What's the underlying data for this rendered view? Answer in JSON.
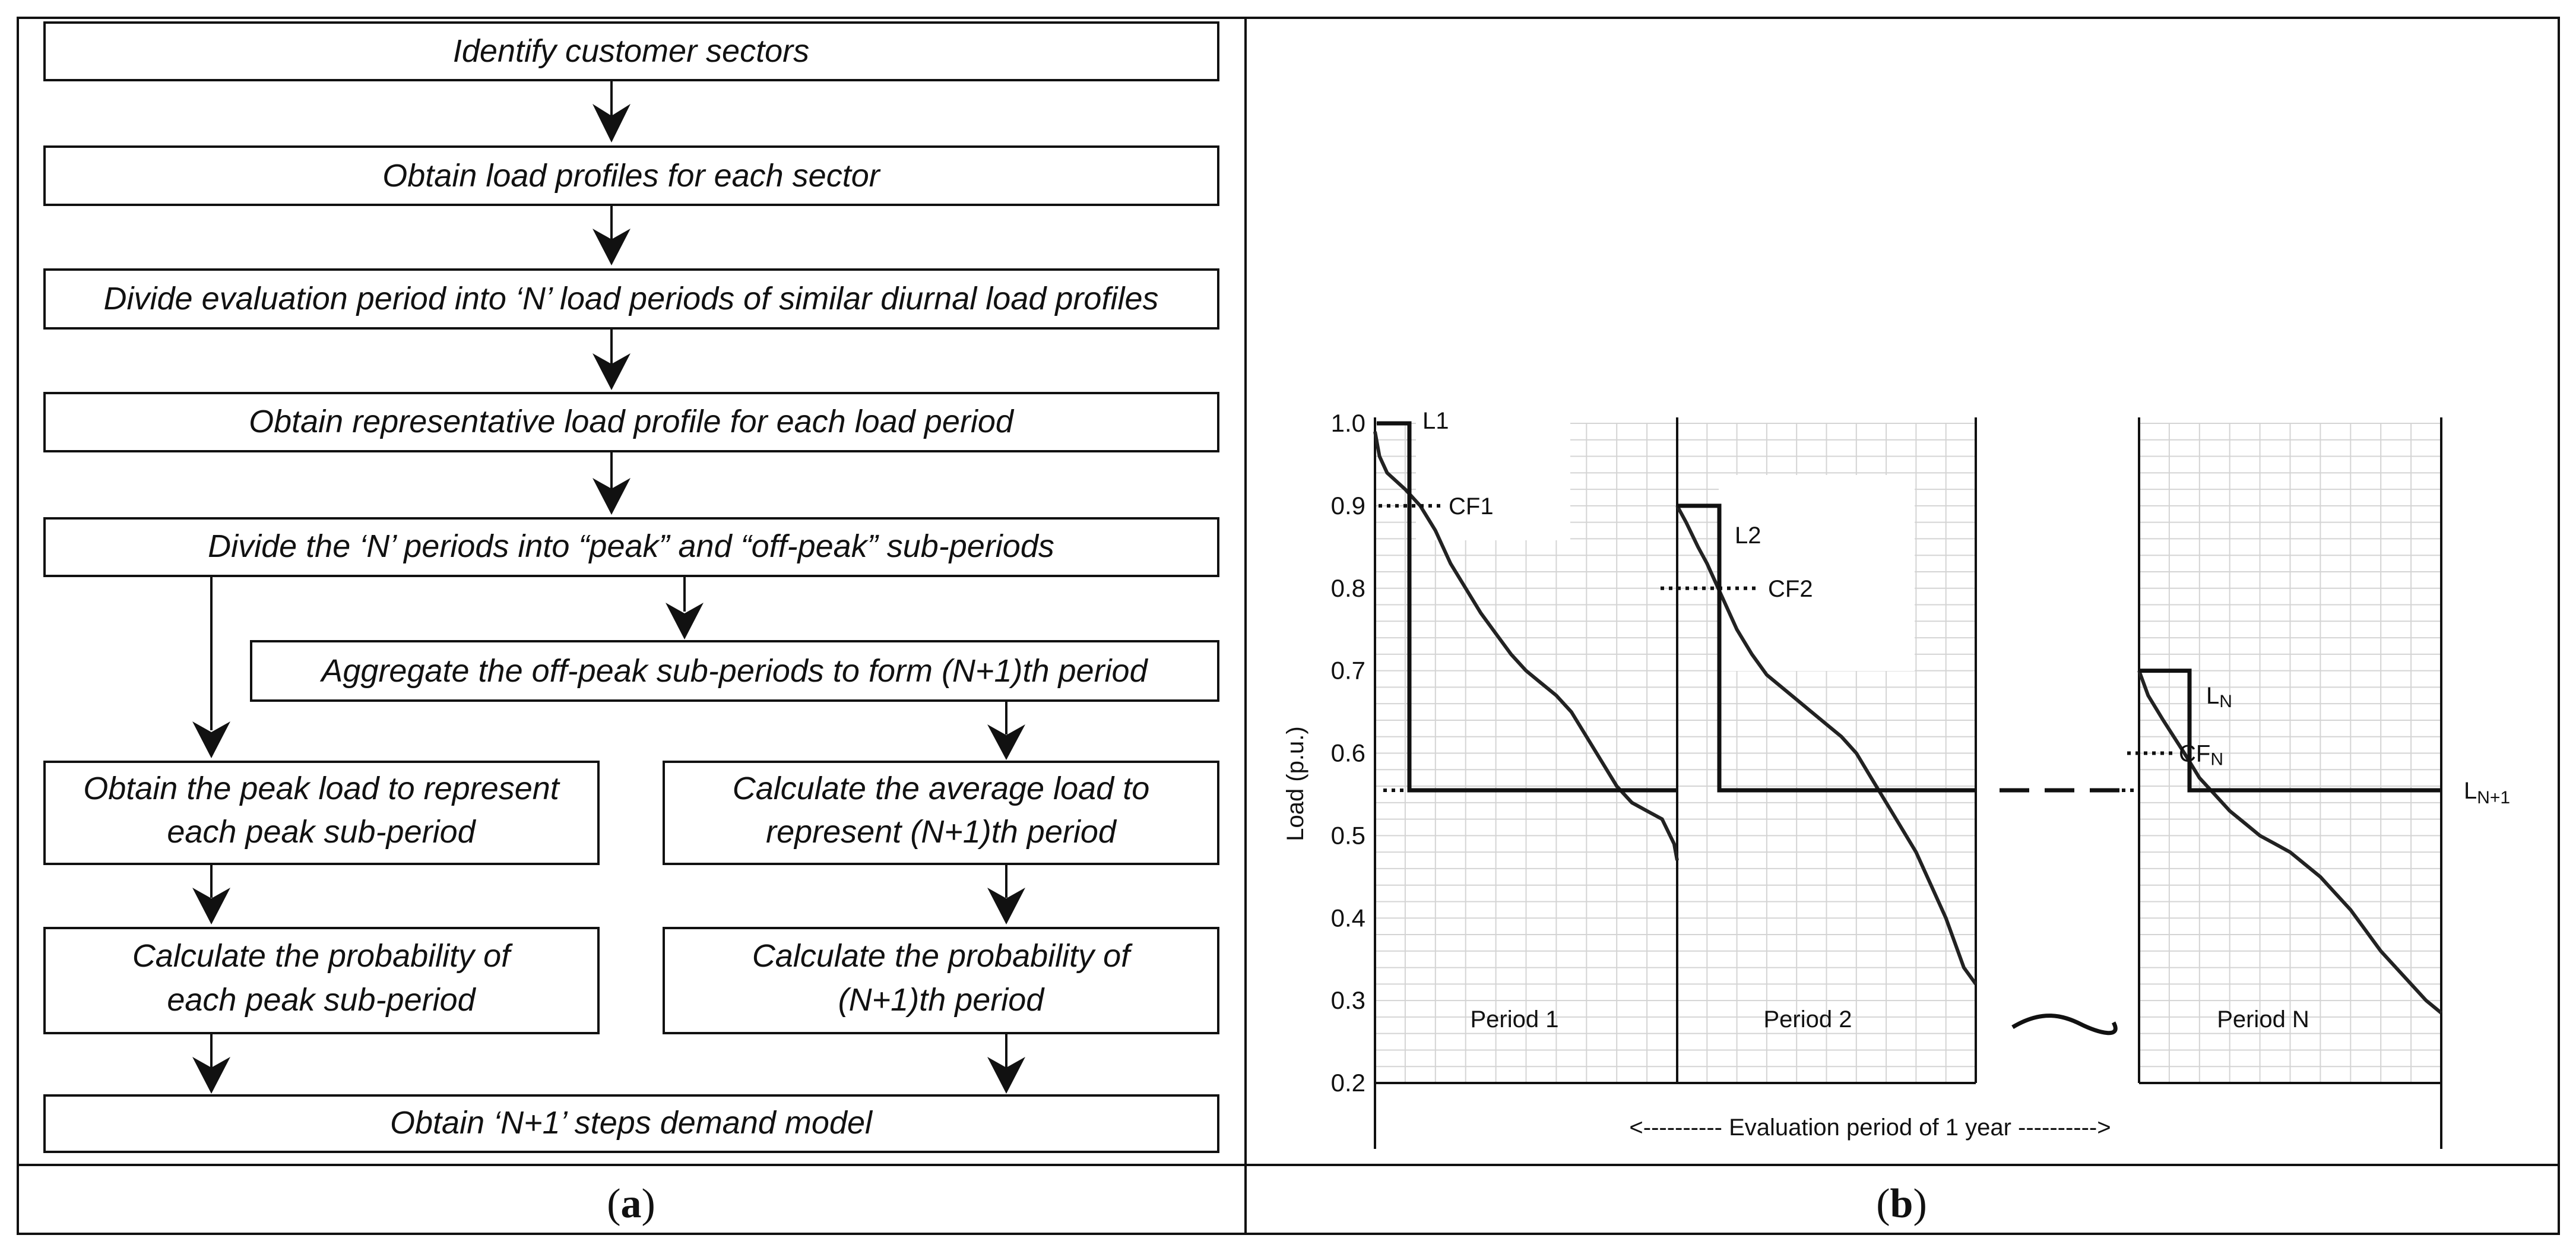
{
  "flowchart": {
    "steps": [
      "Identify customer sectors",
      "Obtain load profiles for each sector",
      "Divide evaluation period into ‘N’ load periods of similar diurnal load profiles",
      "Obtain representative load profile for each load period",
      "Divide the ‘N’ periods into “peak” and “off-peak” sub-periods",
      "Aggregate the off-peak sub-periods to form (N+1)th period",
      "Obtain the peak load to represent",
      "each peak sub-period",
      "Calculate the average load to",
      "represent (N+1)th period",
      "Calculate the probability of",
      "each peak sub-period",
      "Calculate the probability of",
      "(N+1)th period",
      "Obtain ‘N+1’ steps demand model"
    ]
  },
  "captions": {
    "a_open": "(",
    "a_letter": "a",
    "a_close": ")",
    "b_open": "(",
    "b_letter": "b",
    "b_close": ")"
  },
  "chart_data": {
    "type": "line",
    "ylabel": "Load (p.u.)",
    "xlabel": "<----------  Evaluation period of 1 year  ---------->",
    "ylim": [
      0.2,
      1.0
    ],
    "yticks": [
      "1.0",
      "0.9",
      "0.8",
      "0.7",
      "0.6",
      "0.5",
      "0.4",
      "0.3",
      "0.2"
    ],
    "period_labels": [
      "Period 1",
      "Period 2",
      "Period N"
    ],
    "series": [
      {
        "name": "Period 1 load duration curve",
        "x": [
          0,
          0.15,
          0.4,
          0.7,
          1,
          1.5,
          2,
          2.5,
          3,
          3.5,
          4,
          4.5,
          5,
          5.5,
          6,
          6.5,
          7,
          7.5,
          8,
          8.5,
          9,
          9.5,
          9.9,
          10
        ],
        "values": [
          0.99,
          0.96,
          0.94,
          0.93,
          0.92,
          0.9,
          0.87,
          0.83,
          0.8,
          0.77,
          0.745,
          0.72,
          0.7,
          0.685,
          0.67,
          0.65,
          0.62,
          0.59,
          0.56,
          0.54,
          0.53,
          0.52,
          0.49,
          0.47
        ]
      },
      {
        "name": "Period 2 load duration curve",
        "x": [
          0,
          0.3,
          0.7,
          1,
          1.5,
          2,
          2.5,
          3,
          3.5,
          4,
          4.5,
          5,
          5.5,
          6,
          6.5,
          7,
          7.5,
          8,
          8.5,
          9,
          9.3,
          9.6,
          10
        ],
        "values": [
          0.9,
          0.88,
          0.85,
          0.83,
          0.79,
          0.75,
          0.72,
          0.695,
          0.68,
          0.665,
          0.65,
          0.635,
          0.62,
          0.6,
          0.57,
          0.54,
          0.51,
          0.48,
          0.44,
          0.4,
          0.37,
          0.34,
          0.32
        ]
      },
      {
        "name": "Period N load duration curve",
        "x": [
          0,
          0.3,
          0.8,
          1.5,
          2,
          2.5,
          3,
          3.5,
          4,
          4.5,
          5,
          5.5,
          6,
          6.5,
          7,
          7.5,
          8,
          8.5,
          9,
          9.5,
          10
        ],
        "values": [
          0.7,
          0.67,
          0.64,
          0.6,
          0.57,
          0.55,
          0.53,
          0.515,
          0.5,
          0.49,
          0.48,
          0.465,
          0.45,
          0.43,
          0.41,
          0.385,
          0.36,
          0.34,
          0.32,
          0.3,
          0.285
        ]
      }
    ],
    "step_levels": [
      {
        "label": "L1",
        "value": 1.0
      },
      {
        "label": "L2",
        "value": 0.9
      },
      {
        "label": "LN",
        "value": 0.7
      },
      {
        "label": "LN+1",
        "value": 0.555
      }
    ],
    "cf_levels": [
      {
        "label": "CF1",
        "value": 0.9
      },
      {
        "label": "CF2",
        "value": 0.8
      },
      {
        "label": "CFN",
        "value": 0.6
      }
    ]
  }
}
